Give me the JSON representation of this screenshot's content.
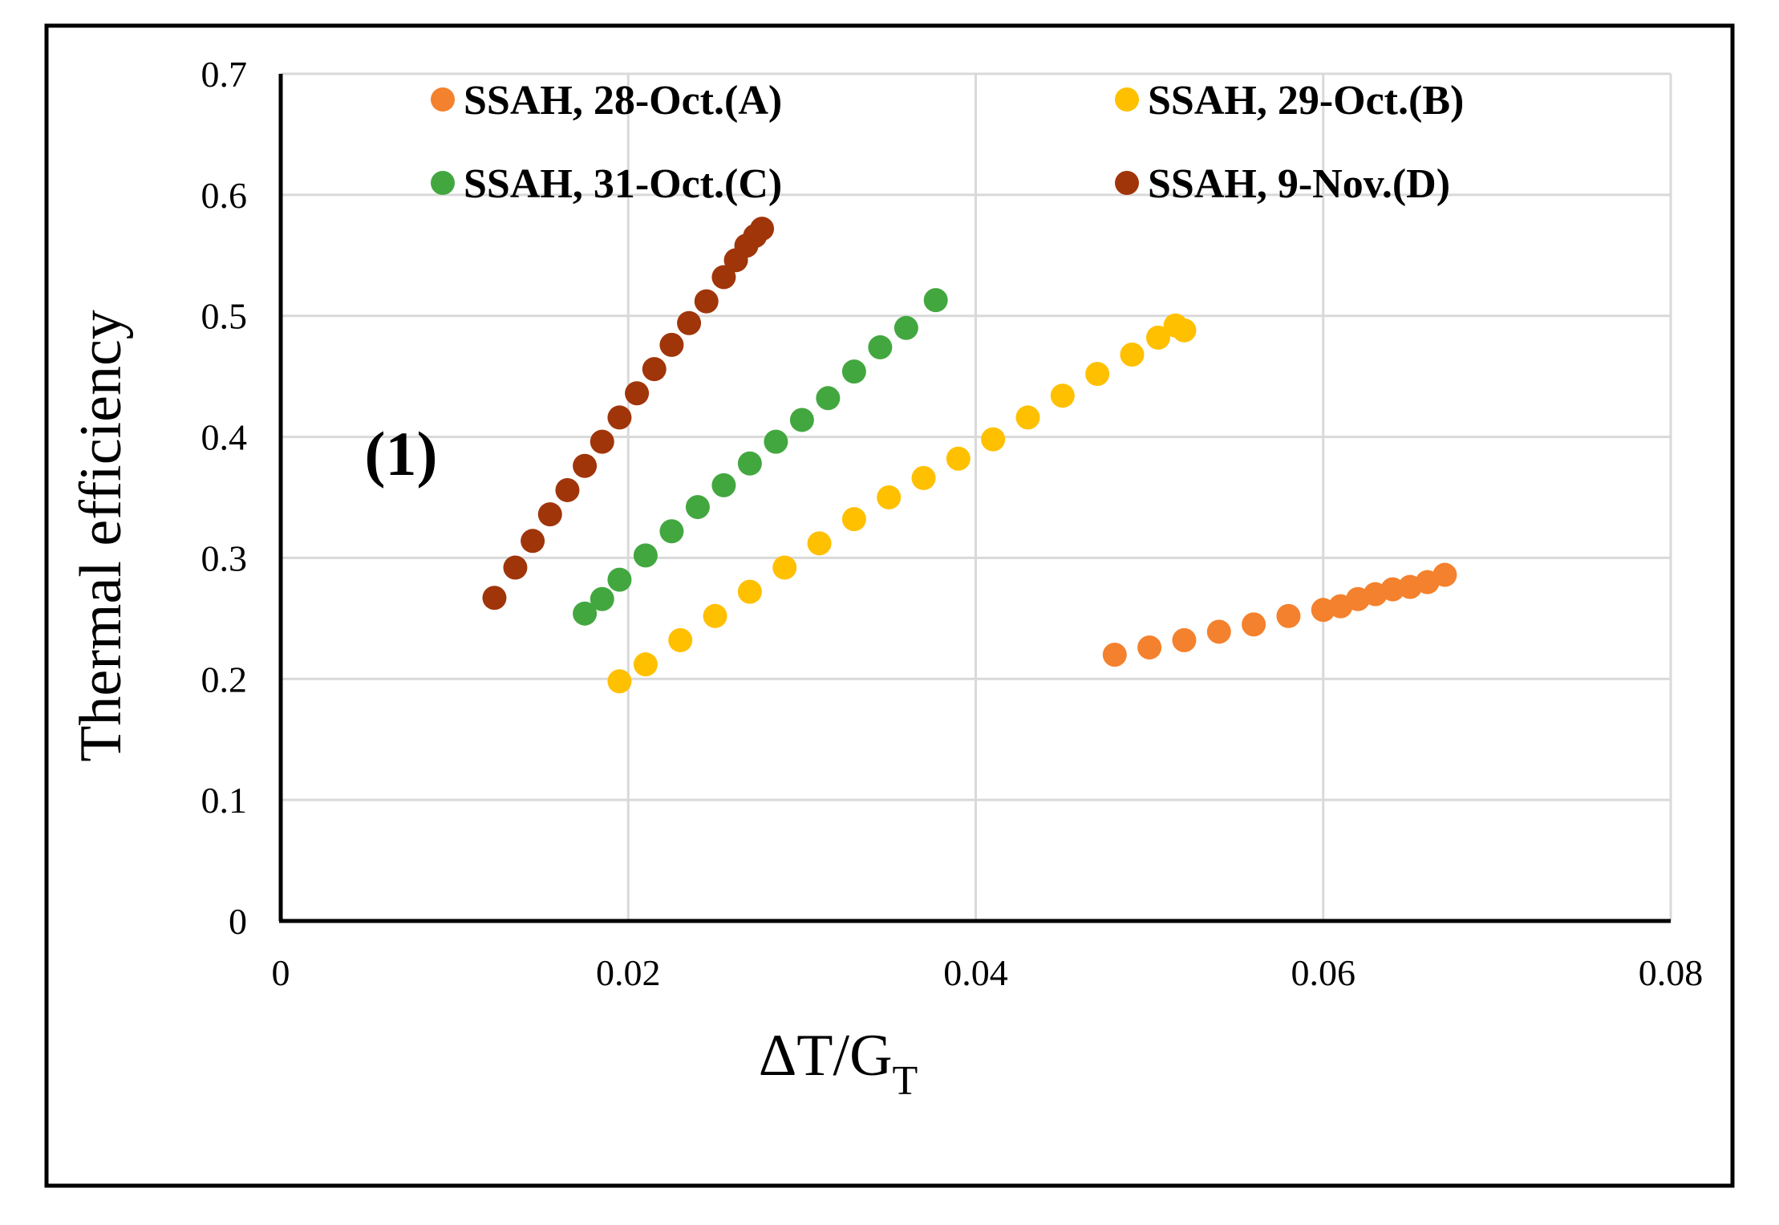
{
  "chart_data": {
    "type": "scatter",
    "title": "",
    "xlabel": "ΔT/G",
    "xlabel_subscript": "T",
    "ylabel": "Thermal efficiency",
    "xlim": [
      0,
      0.08
    ],
    "ylim": [
      0,
      0.7
    ],
    "x_ticks": [
      0,
      0.02,
      0.04,
      0.06,
      0.08
    ],
    "x_tick_labels": [
      "0",
      "0.02",
      "0.04",
      "0.06",
      "0.08"
    ],
    "y_ticks": [
      0,
      0.1,
      0.2,
      0.3,
      0.4,
      0.5,
      0.6,
      0.7
    ],
    "y_tick_labels": [
      "0",
      "0.1",
      "0.2",
      "0.3",
      "0.4",
      "0.5",
      "0.6",
      "0.7"
    ],
    "grid": true,
    "legend_position": "top",
    "annotation": "(1)",
    "series": [
      {
        "name": "SSAH, 28-Oct.(A)",
        "color": "#F4812D",
        "x": [
          0.048,
          0.05,
          0.052,
          0.054,
          0.056,
          0.058,
          0.06,
          0.061,
          0.062,
          0.063,
          0.064,
          0.065,
          0.066,
          0.067
        ],
        "y": [
          0.22,
          0.226,
          0.232,
          0.239,
          0.245,
          0.252,
          0.257,
          0.26,
          0.266,
          0.27,
          0.274,
          0.276,
          0.28,
          0.286
        ]
      },
      {
        "name": "SSAH, 29-Oct.(B)",
        "color": "#FFC000",
        "x": [
          0.0195,
          0.021,
          0.023,
          0.025,
          0.027,
          0.029,
          0.031,
          0.033,
          0.035,
          0.037,
          0.039,
          0.041,
          0.043,
          0.045,
          0.047,
          0.049,
          0.0505,
          0.0515,
          0.052
        ],
        "y": [
          0.198,
          0.212,
          0.232,
          0.252,
          0.272,
          0.292,
          0.312,
          0.332,
          0.35,
          0.366,
          0.382,
          0.398,
          0.416,
          0.434,
          0.452,
          0.468,
          0.482,
          0.492,
          0.488
        ]
      },
      {
        "name": "SSAH, 31-Oct.(C)",
        "color": "#43A740",
        "x": [
          0.0175,
          0.0185,
          0.0195,
          0.021,
          0.0225,
          0.024,
          0.0255,
          0.027,
          0.0285,
          0.03,
          0.0315,
          0.033,
          0.0345,
          0.036,
          0.0377
        ],
        "y": [
          0.254,
          0.266,
          0.282,
          0.302,
          0.322,
          0.342,
          0.36,
          0.378,
          0.396,
          0.414,
          0.432,
          0.454,
          0.474,
          0.49,
          0.513
        ]
      },
      {
        "name": "SSAH, 9-Nov.(D)",
        "color": "#A0350A",
        "x": [
          0.0123,
          0.0135,
          0.0145,
          0.0155,
          0.0165,
          0.0175,
          0.0185,
          0.0195,
          0.0205,
          0.0215,
          0.0225,
          0.0235,
          0.0245,
          0.0255,
          0.0262,
          0.0268,
          0.0273,
          0.0277
        ],
        "y": [
          0.267,
          0.292,
          0.314,
          0.336,
          0.356,
          0.376,
          0.396,
          0.416,
          0.436,
          0.456,
          0.476,
          0.494,
          0.512,
          0.532,
          0.546,
          0.558,
          0.566,
          0.572
        ]
      }
    ]
  }
}
